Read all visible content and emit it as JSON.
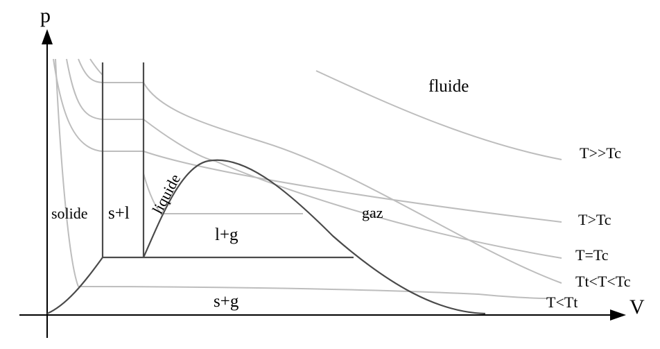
{
  "axes": {
    "y_label": "p",
    "x_label": "V"
  },
  "regions": {
    "fluide": "fluide",
    "solide": "solide",
    "s_plus_l": "s+l",
    "liquide": "liquide",
    "l_plus_g": "l+g",
    "gaz": "gaz",
    "s_plus_g": "s+g"
  },
  "isotherms": [
    {
      "label": "T>>Tc"
    },
    {
      "label": "T>Tc"
    },
    {
      "label": "T=Tc"
    },
    {
      "label": "Tt<T<Tc"
    },
    {
      "label": "T<Tt"
    }
  ],
  "colors": {
    "isotherm": "#bdbdbd",
    "phase_boundary": "#4a4a4a",
    "axis": "#000000"
  }
}
